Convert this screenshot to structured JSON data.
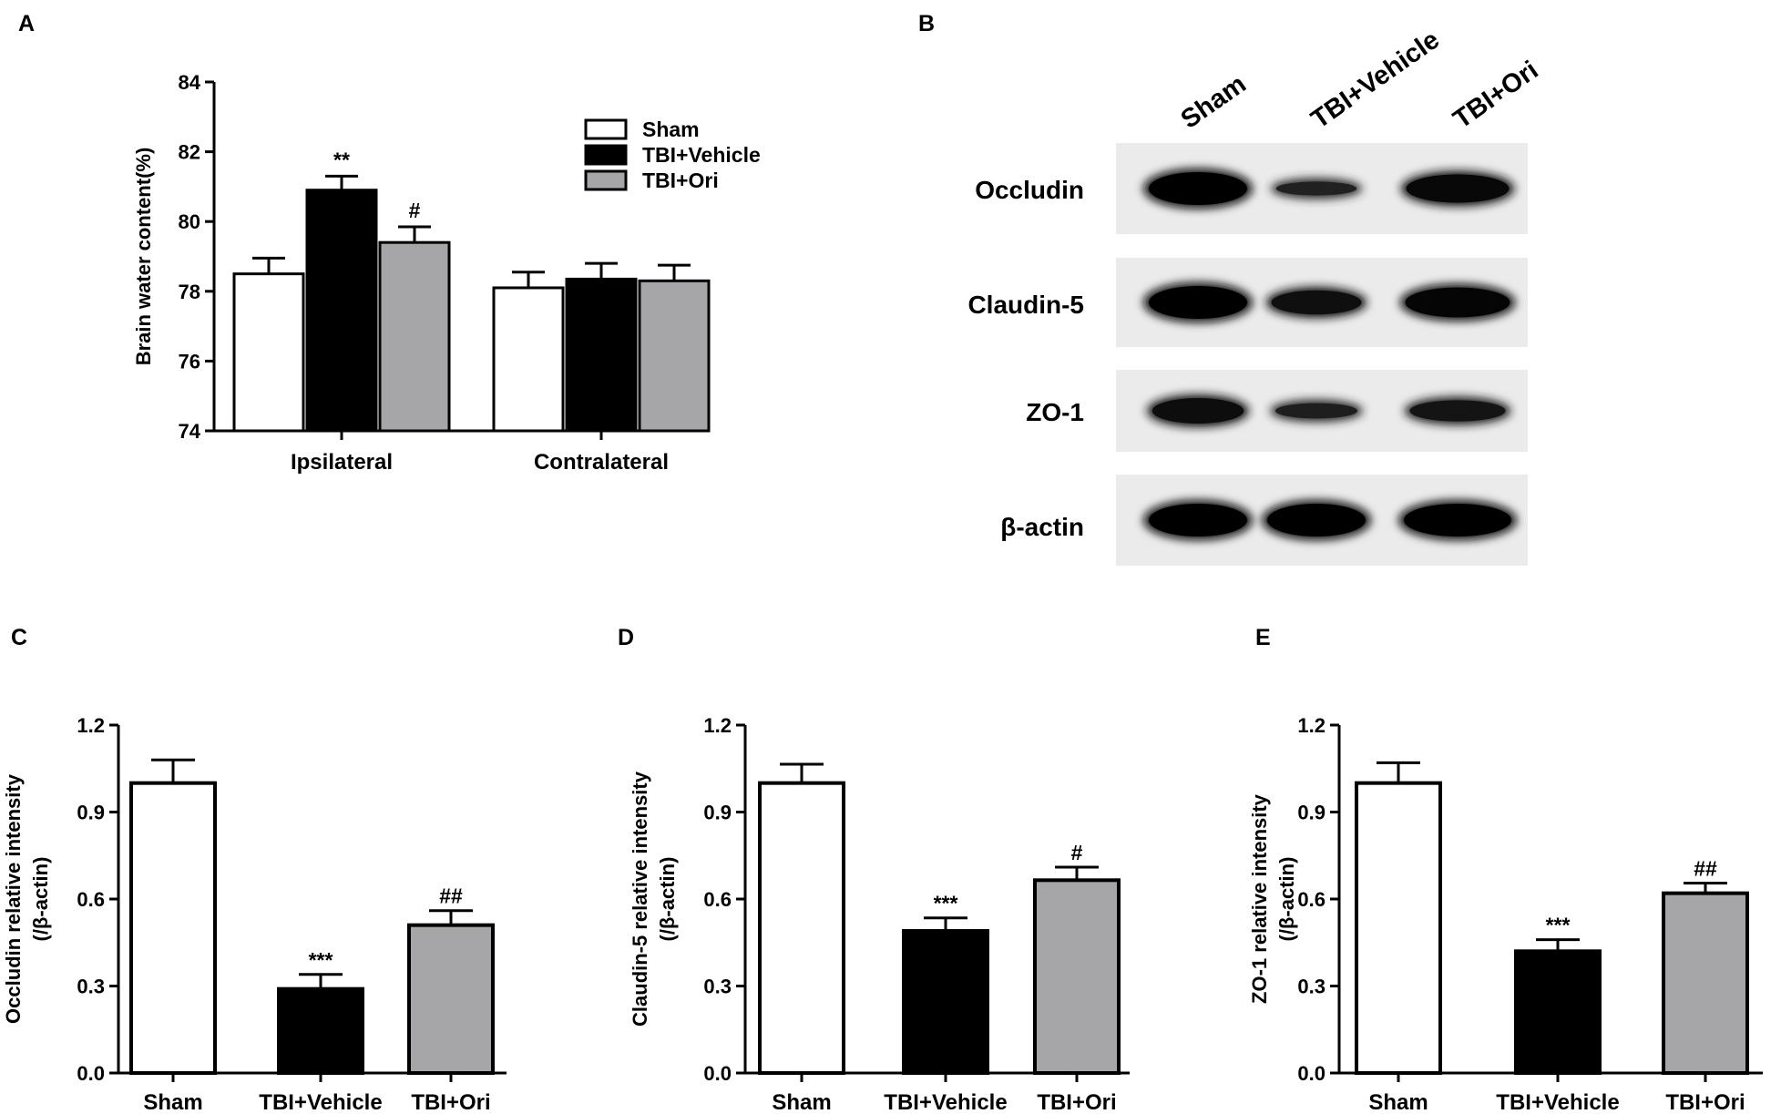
{
  "chart_data": [
    {
      "panel": "A",
      "type": "bar",
      "categories": [
        "Ipsilateral",
        "Contralateral"
      ],
      "ylabel": "Brain water content(%)",
      "xlabel": "",
      "ylim": [
        74,
        84
      ],
      "yticks": [
        "74",
        "76",
        "78",
        "80",
        "82",
        "84"
      ],
      "legend_position": "top-right",
      "series": [
        {
          "name": "Sham",
          "color": "#ffffff",
          "values": [
            78.5,
            78.1
          ],
          "errors": [
            0.45,
            0.45
          ],
          "annotations": [
            "",
            ""
          ]
        },
        {
          "name": "TBI+Vehicle",
          "color": "#000000",
          "values": [
            80.9,
            78.35
          ],
          "errors": [
            0.4,
            0.45
          ],
          "annotations": [
            "**",
            ""
          ]
        },
        {
          "name": "TBI+Ori",
          "color": "#a6a6a9",
          "values": [
            79.4,
            78.3
          ],
          "errors": [
            0.45,
            0.45
          ],
          "annotations": [
            "#",
            ""
          ]
        }
      ]
    },
    {
      "panel": "C",
      "type": "bar",
      "categories": [
        "Sham",
        "TBI+Vehicle",
        "TBI+Ori"
      ],
      "ylabel_lines": [
        "Occludin relative intensity",
        "(/β-actin)"
      ],
      "xlabel": "",
      "ylim": [
        0,
        1.2
      ],
      "yticks": [
        "0.0",
        "0.3",
        "0.6",
        "0.9",
        "1.2"
      ],
      "colors": [
        "#ffffff",
        "#000000",
        "#a6a6a9"
      ],
      "values": [
        1.0,
        0.29,
        0.51
      ],
      "errors": [
        0.08,
        0.05,
        0.05
      ],
      "annotations": [
        "",
        "***",
        "##"
      ]
    },
    {
      "panel": "D",
      "type": "bar",
      "categories": [
        "Sham",
        "TBI+Vehicle",
        "TBI+Ori"
      ],
      "ylabel_lines": [
        "Claudin-5 relative intensity",
        "(/β-actin)"
      ],
      "xlabel": "",
      "ylim": [
        0,
        1.2
      ],
      "yticks": [
        "0.0",
        "0.3",
        "0.6",
        "0.9",
        "1.2"
      ],
      "colors": [
        "#ffffff",
        "#000000",
        "#a6a6a9"
      ],
      "values": [
        1.0,
        0.49,
        0.665
      ],
      "errors": [
        0.065,
        0.045,
        0.045
      ],
      "annotations": [
        "",
        "***",
        "#"
      ]
    },
    {
      "panel": "E",
      "type": "bar",
      "categories": [
        "Sham",
        "TBI+Vehicle",
        "TBI+Ori"
      ],
      "ylabel_lines": [
        "ZO-1 relative intensity",
        "(/β-actin)"
      ],
      "xlabel": "",
      "ylim": [
        0,
        1.2
      ],
      "yticks": [
        "0.0",
        "0.3",
        "0.6",
        "0.9",
        "1.2"
      ],
      "colors": [
        "#ffffff",
        "#000000",
        "#a6a6a9"
      ],
      "values": [
        1.0,
        0.42,
        0.62
      ],
      "errors": [
        0.07,
        0.04,
        0.035
      ],
      "annotations": [
        "",
        "***",
        "##"
      ]
    }
  ],
  "western_blot": {
    "panel": "B",
    "lanes": [
      "Sham",
      "TBI+Vehicle",
      "TBI+Ori"
    ],
    "proteins": [
      {
        "name": "Occludin",
        "band_intensity": [
          1.0,
          0.35,
          0.85
        ]
      },
      {
        "name": "Claudin-5",
        "band_intensity": [
          1.0,
          0.7,
          0.9
        ]
      },
      {
        "name": "ZO-1",
        "band_intensity": [
          0.75,
          0.4,
          0.6
        ]
      },
      {
        "name": "β-actin",
        "band_intensity": [
          1.0,
          1.0,
          1.0
        ]
      }
    ]
  }
}
